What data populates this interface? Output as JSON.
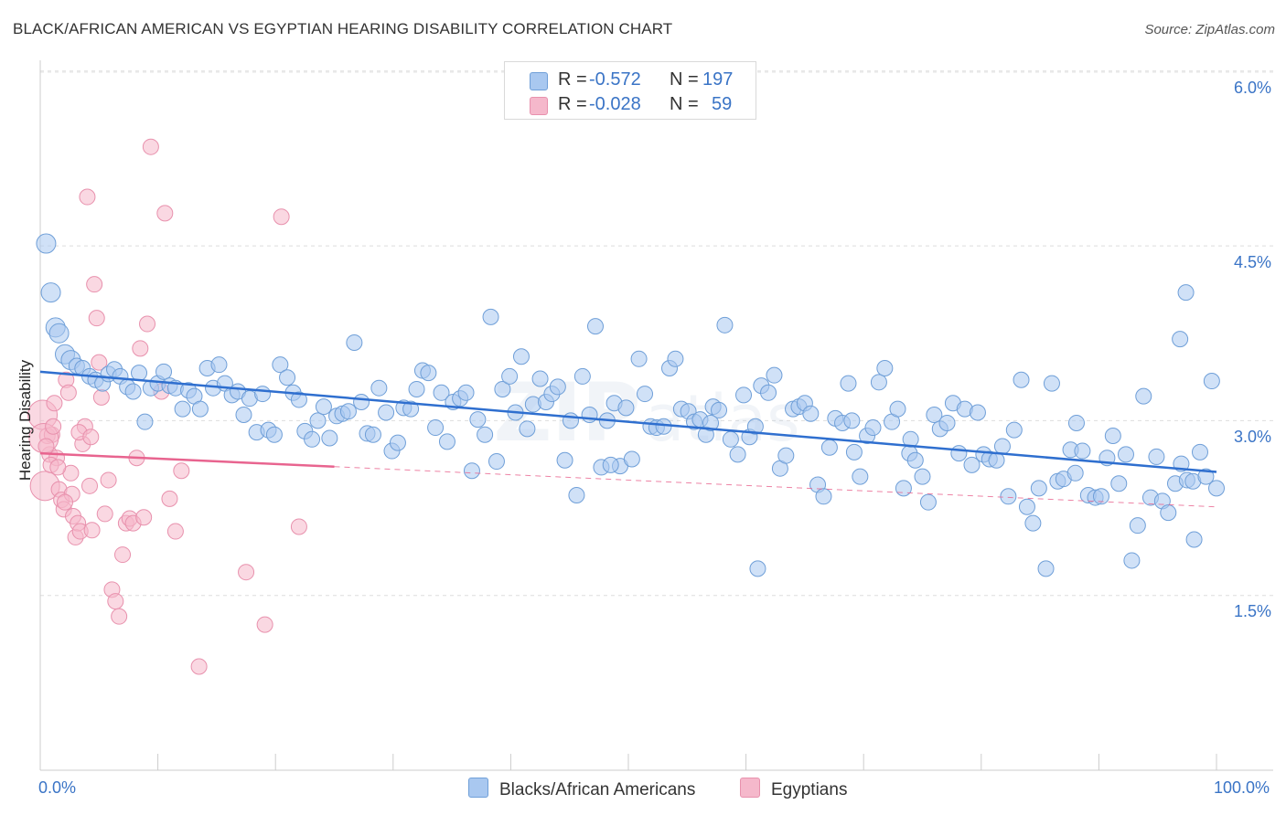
{
  "title": "BLACK/AFRICAN AMERICAN VS EGYPTIAN HEARING DISABILITY CORRELATION CHART",
  "source": "Source: ZipAtlas.com",
  "colors": {
    "blue_fill": "#a9c8f0",
    "blue_stroke": "#6f9fd8",
    "blue_line": "#2f6fcf",
    "pink_fill": "#f5b8cb",
    "pink_stroke": "#e891ad",
    "pink_line": "#e8648f",
    "accent_text": "#3a74c6"
  },
  "legend": {
    "rows": [
      {
        "r_label": "R =",
        "r_value": "-0.572",
        "n_label": "N =",
        "n_value": "197"
      },
      {
        "r_label": "R =",
        "r_value": "-0.028",
        "n_label": "N =",
        "n_value": "59"
      }
    ]
  },
  "bottom_legend": {
    "series1": "Blacks/African Americans",
    "series2": "Egyptians"
  },
  "axes": {
    "ylabel": "Hearing Disability",
    "x_min_label": "0.0%",
    "x_max_label": "100.0%",
    "y_ticks": [
      "6.0%",
      "4.5%",
      "3.0%",
      "1.5%"
    ]
  },
  "chart_data": {
    "type": "scatter",
    "title": "BLACK/AFRICAN AMERICAN VS EGYPTIAN HEARING DISABILITY CORRELATION CHART",
    "xlabel": "",
    "ylabel": "Hearing Disability",
    "xlim": [
      0,
      100
    ],
    "ylim": [
      0,
      6.15
    ],
    "y_ticks": [
      1.5,
      3.0,
      4.5,
      6.0
    ],
    "grid": "horizontal dashed",
    "legend_position": "top-center",
    "series": [
      {
        "name": "Blacks/African Americans",
        "R": -0.572,
        "N": 197,
        "trend": {
          "x": [
            0,
            100
          ],
          "y": [
            3.42,
            2.56
          ]
        },
        "points": [
          [
            0.5,
            4.52
          ],
          [
            0.9,
            4.1
          ],
          [
            1.3,
            3.8
          ],
          [
            1.6,
            3.75
          ],
          [
            2.1,
            3.57
          ],
          [
            2.6,
            3.52
          ],
          [
            3.1,
            3.47
          ],
          [
            3.6,
            3.45
          ],
          [
            4.2,
            3.38
          ],
          [
            4.7,
            3.35
          ],
          [
            5.3,
            3.32
          ],
          [
            5.8,
            3.4
          ],
          [
            6.3,
            3.44
          ],
          [
            6.8,
            3.38
          ],
          [
            7.4,
            3.29
          ],
          [
            7.9,
            3.25
          ],
          [
            8.4,
            3.41
          ],
          [
            8.9,
            2.99
          ],
          [
            9.4,
            3.28
          ],
          [
            10.0,
            3.32
          ],
          [
            10.5,
            3.42
          ],
          [
            11.0,
            3.3
          ],
          [
            11.5,
            3.28
          ],
          [
            12.1,
            3.1
          ],
          [
            12.6,
            3.26
          ],
          [
            13.1,
            3.21
          ],
          [
            13.6,
            3.1
          ],
          [
            14.2,
            3.45
          ],
          [
            14.7,
            3.28
          ],
          [
            15.2,
            3.48
          ],
          [
            15.7,
            3.32
          ],
          [
            16.3,
            3.22
          ],
          [
            16.8,
            3.25
          ],
          [
            17.3,
            3.05
          ],
          [
            17.8,
            3.19
          ],
          [
            18.4,
            2.9
          ],
          [
            18.9,
            3.23
          ],
          [
            19.4,
            2.92
          ],
          [
            19.9,
            2.88
          ],
          [
            20.4,
            3.48
          ],
          [
            21.0,
            3.37
          ],
          [
            21.5,
            3.24
          ],
          [
            22.0,
            3.18
          ],
          [
            22.5,
            2.91
          ],
          [
            23.1,
            2.84
          ],
          [
            23.6,
            3.0
          ],
          [
            24.1,
            3.12
          ],
          [
            24.6,
            2.85
          ],
          [
            25.2,
            3.04
          ],
          [
            25.7,
            3.06
          ],
          [
            26.2,
            3.08
          ],
          [
            26.7,
            3.67
          ],
          [
            27.3,
            3.16
          ],
          [
            27.8,
            2.89
          ],
          [
            28.3,
            2.88
          ],
          [
            28.8,
            3.28
          ],
          [
            29.4,
            3.07
          ],
          [
            29.9,
            2.74
          ],
          [
            30.4,
            2.81
          ],
          [
            30.9,
            3.11
          ],
          [
            31.5,
            3.1
          ],
          [
            32.0,
            3.27
          ],
          [
            32.5,
            3.43
          ],
          [
            33.0,
            3.41
          ],
          [
            33.6,
            2.94
          ],
          [
            34.1,
            3.24
          ],
          [
            34.6,
            2.82
          ],
          [
            35.1,
            3.16
          ],
          [
            35.7,
            3.19
          ],
          [
            36.2,
            3.24
          ],
          [
            36.7,
            2.57
          ],
          [
            37.2,
            3.01
          ],
          [
            37.8,
            2.88
          ],
          [
            38.3,
            3.89
          ],
          [
            38.8,
            2.65
          ],
          [
            39.3,
            3.27
          ],
          [
            39.9,
            3.38
          ],
          [
            40.4,
            3.07
          ],
          [
            40.9,
            3.55
          ],
          [
            41.4,
            2.93
          ],
          [
            41.9,
            3.14
          ],
          [
            42.5,
            3.36
          ],
          [
            43.0,
            3.16
          ],
          [
            43.5,
            3.23
          ],
          [
            44.0,
            3.29
          ],
          [
            44.6,
            2.66
          ],
          [
            45.1,
            3.0
          ],
          [
            45.6,
            2.36
          ],
          [
            46.1,
            3.38
          ],
          [
            46.7,
            3.05
          ],
          [
            47.2,
            3.81
          ],
          [
            47.7,
            2.6
          ],
          [
            48.2,
            3.0
          ],
          [
            48.8,
            3.15
          ],
          [
            49.3,
            2.61
          ],
          [
            49.8,
            3.11
          ],
          [
            50.3,
            2.67
          ],
          [
            50.9,
            3.53
          ],
          [
            51.4,
            3.23
          ],
          [
            51.9,
            2.95
          ],
          [
            52.4,
            2.94
          ],
          [
            53.0,
            2.95
          ],
          [
            53.5,
            3.45
          ],
          [
            54.0,
            3.53
          ],
          [
            54.5,
            3.1
          ],
          [
            55.1,
            3.08
          ],
          [
            55.6,
            2.99
          ],
          [
            56.1,
            3.01
          ],
          [
            56.6,
            2.88
          ],
          [
            57.2,
            3.12
          ],
          [
            57.7,
            3.09
          ],
          [
            58.2,
            3.82
          ],
          [
            58.7,
            2.84
          ],
          [
            59.3,
            2.71
          ],
          [
            59.8,
            3.22
          ],
          [
            60.3,
            2.86
          ],
          [
            60.8,
            2.95
          ],
          [
            61.3,
            3.3
          ],
          [
            61.9,
            3.24
          ],
          [
            62.4,
            3.39
          ],
          [
            62.9,
            2.59
          ],
          [
            63.4,
            2.7
          ],
          [
            64.0,
            3.1
          ],
          [
            64.5,
            3.12
          ],
          [
            65.0,
            3.15
          ],
          [
            65.5,
            3.06
          ],
          [
            66.1,
            2.45
          ],
          [
            66.6,
            2.35
          ],
          [
            67.1,
            2.77
          ],
          [
            67.6,
            3.02
          ],
          [
            68.2,
            2.98
          ],
          [
            68.7,
            3.32
          ],
          [
            69.2,
            2.73
          ],
          [
            69.7,
            2.52
          ],
          [
            70.3,
            2.87
          ],
          [
            70.8,
            2.94
          ],
          [
            71.3,
            3.33
          ],
          [
            71.8,
            3.45
          ],
          [
            72.4,
            2.99
          ],
          [
            72.9,
            3.1
          ],
          [
            73.4,
            2.42
          ],
          [
            73.9,
            2.72
          ],
          [
            74.4,
            2.66
          ],
          [
            75.0,
            2.52
          ],
          [
            75.5,
            2.3
          ],
          [
            76.0,
            3.05
          ],
          [
            76.5,
            2.93
          ],
          [
            77.1,
            2.98
          ],
          [
            77.6,
            3.15
          ],
          [
            78.1,
            2.72
          ],
          [
            78.6,
            3.1
          ],
          [
            79.2,
            2.62
          ],
          [
            79.7,
            3.07
          ],
          [
            80.2,
            2.71
          ],
          [
            80.7,
            2.67
          ],
          [
            81.3,
            2.66
          ],
          [
            81.8,
            2.78
          ],
          [
            82.3,
            2.35
          ],
          [
            82.8,
            2.92
          ],
          [
            83.4,
            3.35
          ],
          [
            83.9,
            2.26
          ],
          [
            84.4,
            2.12
          ],
          [
            84.9,
            2.42
          ],
          [
            85.5,
            1.73
          ],
          [
            86.0,
            3.32
          ],
          [
            86.5,
            2.48
          ],
          [
            87.0,
            2.5
          ],
          [
            87.6,
            2.75
          ],
          [
            88.1,
            2.98
          ],
          [
            88.6,
            2.74
          ],
          [
            89.1,
            2.36
          ],
          [
            89.7,
            2.34
          ],
          [
            90.2,
            2.35
          ],
          [
            90.7,
            2.68
          ],
          [
            91.2,
            2.87
          ],
          [
            91.7,
            2.46
          ],
          [
            92.3,
            2.71
          ],
          [
            92.8,
            1.8
          ],
          [
            93.3,
            2.1
          ],
          [
            93.8,
            3.21
          ],
          [
            94.4,
            2.34
          ],
          [
            94.9,
            2.69
          ],
          [
            95.4,
            2.31
          ],
          [
            95.9,
            2.21
          ],
          [
            96.5,
            2.46
          ],
          [
            97.0,
            2.63
          ],
          [
            97.5,
            2.49
          ],
          [
            98.0,
            2.48
          ],
          [
            98.6,
            2.73
          ],
          [
            99.1,
            2.52
          ],
          [
            99.6,
            3.34
          ],
          [
            100.0,
            2.42
          ],
          [
            96.9,
            3.7
          ],
          [
            97.4,
            4.1
          ],
          [
            98.1,
            1.98
          ],
          [
            48.5,
            2.62
          ],
          [
            69.0,
            3.0
          ],
          [
            88.0,
            2.55
          ],
          [
            57.0,
            2.98
          ],
          [
            74.0,
            2.84
          ],
          [
            61.0,
            1.73
          ]
        ]
      },
      {
        "name": "Egyptians",
        "R": -0.028,
        "N": 59,
        "trend": {
          "x": [
            0,
            100
          ],
          "y": [
            2.72,
            2.26
          ]
        },
        "points": [
          [
            0.2,
            3.05
          ],
          [
            0.4,
            2.44
          ],
          [
            0.6,
            2.87
          ],
          [
            0.8,
            2.71
          ],
          [
            1.0,
            2.88
          ],
          [
            1.2,
            3.15
          ],
          [
            1.4,
            2.68
          ],
          [
            1.6,
            2.41
          ],
          [
            1.8,
            2.32
          ],
          [
            2.0,
            2.24
          ],
          [
            2.2,
            3.35
          ],
          [
            2.4,
            3.24
          ],
          [
            2.6,
            2.55
          ],
          [
            2.8,
            2.18
          ],
          [
            3.0,
            2.0
          ],
          [
            3.2,
            2.12
          ],
          [
            3.4,
            2.05
          ],
          [
            3.6,
            2.8
          ],
          [
            3.8,
            2.95
          ],
          [
            4.0,
            4.92
          ],
          [
            4.2,
            2.44
          ],
          [
            4.4,
            2.06
          ],
          [
            4.6,
            4.17
          ],
          [
            4.8,
            3.88
          ],
          [
            5.0,
            3.5
          ],
          [
            5.2,
            3.2
          ],
          [
            5.5,
            2.2
          ],
          [
            5.8,
            2.49
          ],
          [
            6.1,
            1.55
          ],
          [
            6.4,
            1.45
          ],
          [
            6.7,
            1.32
          ],
          [
            7.0,
            1.85
          ],
          [
            7.3,
            2.12
          ],
          [
            7.6,
            2.16
          ],
          [
            7.9,
            2.12
          ],
          [
            8.2,
            2.68
          ],
          [
            8.5,
            3.62
          ],
          [
            8.8,
            2.17
          ],
          [
            9.1,
            3.83
          ],
          [
            9.4,
            5.35
          ],
          [
            10.3,
            3.25
          ],
          [
            10.6,
            4.78
          ],
          [
            11.0,
            2.33
          ],
          [
            11.5,
            2.05
          ],
          [
            12.0,
            2.57
          ],
          [
            13.5,
            0.89
          ],
          [
            17.5,
            1.7
          ],
          [
            19.1,
            1.25
          ],
          [
            20.5,
            4.75
          ],
          [
            22.0,
            2.09
          ],
          [
            0.3,
            2.85
          ],
          [
            0.9,
            2.62
          ],
          [
            1.5,
            2.6
          ],
          [
            2.7,
            2.37
          ],
          [
            3.3,
            2.9
          ],
          [
            0.5,
            2.78
          ],
          [
            1.1,
            2.95
          ],
          [
            2.1,
            2.3
          ],
          [
            4.3,
            2.86
          ]
        ]
      }
    ]
  }
}
